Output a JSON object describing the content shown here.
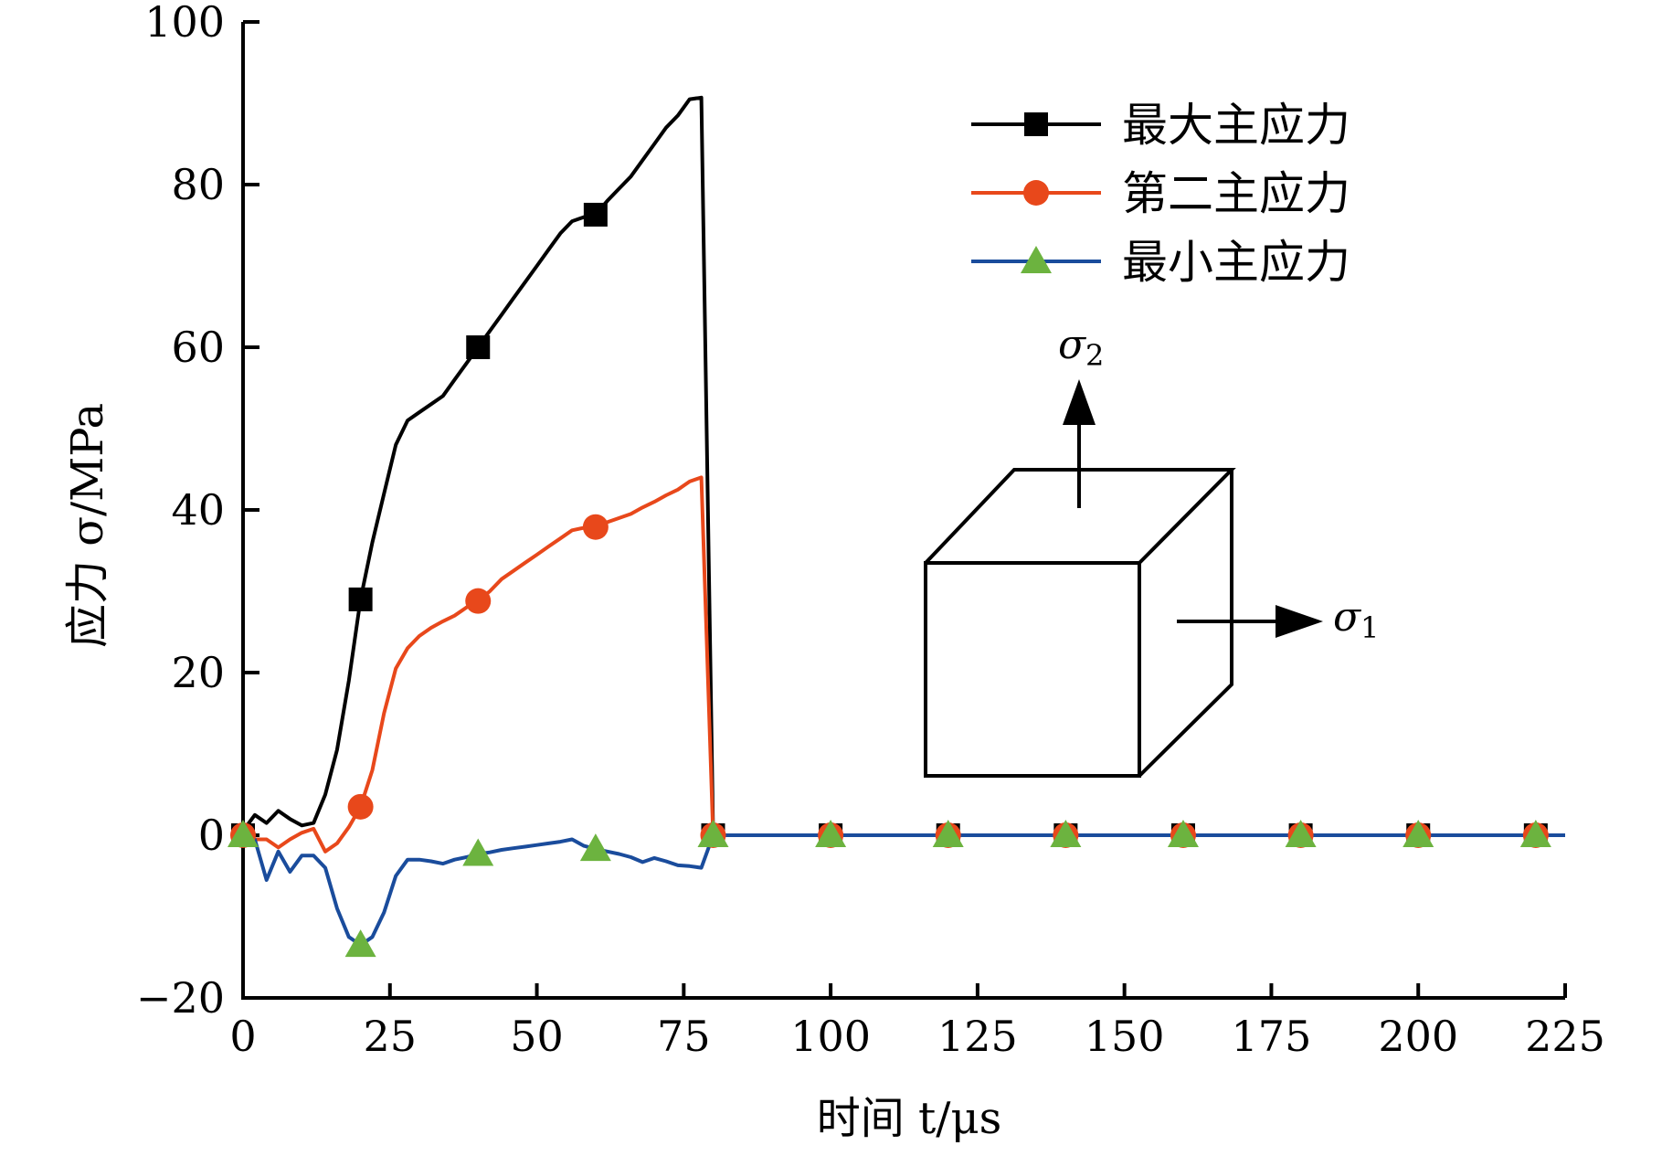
{
  "chart_data": {
    "type": "line",
    "xlabel": "时间 t/μs",
    "ylabel": "应力 σ/MPa",
    "xlim": [
      0,
      225
    ],
    "ylim": [
      -20,
      100
    ],
    "xticks": [
      0,
      25,
      50,
      75,
      100,
      125,
      150,
      175,
      200,
      225
    ],
    "yticks": [
      -20,
      0,
      20,
      40,
      60,
      80,
      100
    ],
    "xtick_labels": [
      "0",
      "25",
      "50",
      "75",
      "100",
      "125",
      "150",
      "175",
      "200",
      "225"
    ],
    "ytick_labels": [
      "−20",
      "0",
      "20",
      "40",
      "60",
      "80",
      "100"
    ],
    "grid": false,
    "legend_position": "top-right",
    "series": [
      {
        "name": "最大主应力",
        "color": "#000000",
        "marker": "square",
        "x": [
          0,
          1,
          2,
          4,
          6,
          8,
          10,
          12,
          14,
          16,
          18,
          20,
          22,
          24,
          26,
          28,
          30,
          32,
          34,
          36,
          38,
          40,
          42,
          44,
          46,
          48,
          50,
          52,
          54,
          56,
          58,
          60,
          62,
          64,
          66,
          68,
          70,
          72,
          74,
          76,
          78,
          80,
          100,
          120,
          140,
          160,
          180,
          200,
          220,
          225
        ],
        "y": [
          0.5,
          1.5,
          2.5,
          1.5,
          3,
          2,
          1.2,
          1.5,
          5,
          10.5,
          19,
          29,
          36,
          42,
          48,
          51,
          52,
          53,
          54,
          56,
          58,
          60,
          62,
          64,
          66,
          68,
          70,
          72,
          74,
          75.5,
          76,
          76.3,
          78,
          79.5,
          81,
          83,
          85,
          87,
          88.5,
          90.5,
          90.7,
          0,
          0,
          0,
          0,
          0,
          0,
          0,
          0,
          0
        ],
        "marker_x": [
          0,
          20,
          40,
          60,
          80,
          100,
          120,
          140,
          160,
          180,
          200,
          220
        ],
        "marker_y": [
          0,
          29,
          60,
          76.3,
          0,
          0,
          0,
          0,
          0,
          0,
          0,
          0
        ]
      },
      {
        "name": "第二主应力",
        "color": "#e8481b",
        "marker": "circle",
        "x": [
          0,
          2,
          4,
          6,
          8,
          10,
          12,
          14,
          16,
          18,
          20,
          22,
          24,
          26,
          28,
          30,
          32,
          34,
          36,
          38,
          40,
          42,
          44,
          46,
          48,
          50,
          52,
          54,
          56,
          58,
          60,
          62,
          64,
          66,
          68,
          70,
          72,
          74,
          76,
          78,
          80,
          100,
          120,
          140,
          160,
          180,
          200,
          220,
          225
        ],
        "y": [
          0,
          -0.5,
          -0.5,
          -1.5,
          -0.5,
          0.3,
          0.8,
          -2,
          -1,
          1,
          3.5,
          8,
          15,
          20.5,
          23,
          24.5,
          25.5,
          26.3,
          27,
          28,
          28.8,
          30,
          31.5,
          32.5,
          33.5,
          34.5,
          35.5,
          36.5,
          37.5,
          37.8,
          37.9,
          38.5,
          39,
          39.5,
          40.3,
          41,
          41.8,
          42.5,
          43.5,
          44,
          0,
          0,
          0,
          0,
          0,
          0,
          0,
          0,
          0
        ],
        "marker_x": [
          0,
          20,
          40,
          60,
          80,
          100,
          120,
          140,
          160,
          180,
          200,
          220
        ],
        "marker_y": [
          0,
          3.5,
          28.8,
          37.9,
          0,
          0,
          0,
          0,
          0,
          0,
          0,
          0
        ]
      },
      {
        "name": "最小主应力",
        "color": "#1a4c9c",
        "marker_color": "#6cb33f",
        "marker": "triangle",
        "x": [
          0,
          2,
          4,
          6,
          8,
          10,
          12,
          14,
          16,
          18,
          20,
          22,
          24,
          26,
          28,
          30,
          32,
          34,
          36,
          38,
          40,
          42,
          44,
          46,
          48,
          50,
          52,
          54,
          56,
          58,
          60,
          62,
          64,
          66,
          68,
          70,
          72,
          74,
          76,
          78,
          80,
          100,
          120,
          140,
          160,
          180,
          200,
          220,
          225
        ],
        "y": [
          0,
          -0.5,
          -5.5,
          -2,
          -4.5,
          -2.5,
          -2.5,
          -4,
          -9,
          -12.5,
          -13.5,
          -12.5,
          -9.5,
          -5,
          -3,
          -3,
          -3.2,
          -3.5,
          -3,
          -2.7,
          -2.3,
          -2.1,
          -1.8,
          -1.6,
          -1.4,
          -1.2,
          -1,
          -0.8,
          -0.5,
          -1.3,
          -1.7,
          -2,
          -2.3,
          -2.7,
          -3.3,
          -2.8,
          -3.2,
          -3.7,
          -3.8,
          -4,
          0,
          0,
          0,
          0,
          0,
          0,
          0,
          0,
          0
        ],
        "marker_x": [
          0,
          20,
          40,
          60,
          80,
          100,
          120,
          140,
          160,
          180,
          200,
          220
        ],
        "marker_y": [
          0,
          -13.5,
          -2.3,
          -1.7,
          0,
          0,
          0,
          0,
          0,
          0,
          0,
          0
        ]
      }
    ],
    "annotations": {
      "sigma1": "σ",
      "sigma1_sub": "1",
      "sigma2": "σ",
      "sigma2_sub": "2"
    }
  }
}
